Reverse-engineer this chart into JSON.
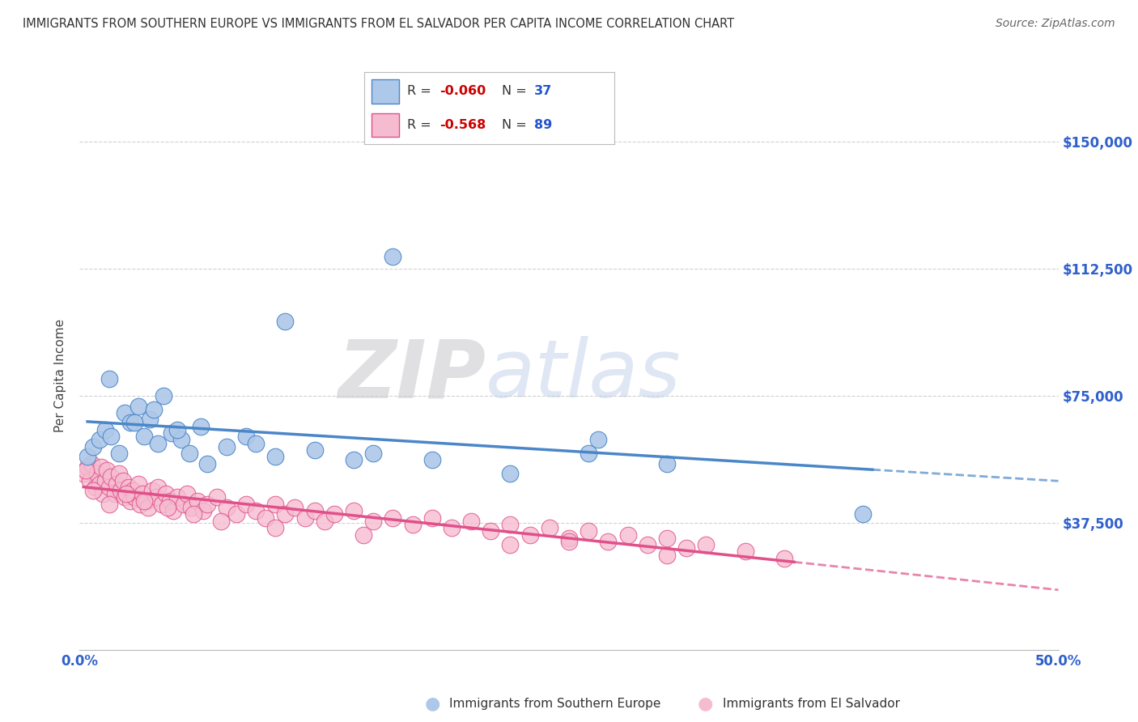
{
  "title": "IMMIGRANTS FROM SOUTHERN EUROPE VS IMMIGRANTS FROM EL SALVADOR PER CAPITA INCOME CORRELATION CHART",
  "source": "Source: ZipAtlas.com",
  "ylabel": "Per Capita Income",
  "yticks": [
    0,
    37500,
    75000,
    112500,
    150000
  ],
  "ytick_labels": [
    "",
    "$37,500",
    "$75,000",
    "$112,500",
    "$150,000"
  ],
  "xlim": [
    0.0,
    50.0
  ],
  "ylim": [
    0,
    162000
  ],
  "series1_label": "Immigrants from Southern Europe",
  "series1_R": "-0.060",
  "series1_N": "37",
  "series1_color": "#adc8e8",
  "series1_edge_color": "#4a86c8",
  "series2_label": "Immigrants from El Salvador",
  "series2_R": "-0.568",
  "series2_N": "89",
  "series2_color": "#f5bcd0",
  "series2_edge_color": "#e0508a",
  "watermark_zip": "ZIP",
  "watermark_atlas": "atlas",
  "background_color": "#ffffff",
  "grid_color": "#cccccc",
  "title_color": "#333333",
  "axis_label_color": "#3060cc",
  "legend_R_color": "#cc0000",
  "legend_N_color": "#2255cc",
  "blue_points_x": [
    0.4,
    0.7,
    1.0,
    1.3,
    1.6,
    2.0,
    2.3,
    2.6,
    3.0,
    3.3,
    3.6,
    4.0,
    4.3,
    4.7,
    5.2,
    5.6,
    6.2,
    7.5,
    8.5,
    10.0,
    12.0,
    1.5,
    2.8,
    3.8,
    5.0,
    6.5,
    9.0,
    16.0,
    15.0,
    18.0,
    22.0,
    26.0,
    30.0,
    40.0,
    26.5,
    10.5,
    14.0
  ],
  "blue_points_y": [
    57000,
    60000,
    62000,
    65000,
    63000,
    58000,
    70000,
    67000,
    72000,
    63000,
    68000,
    61000,
    75000,
    64000,
    62000,
    58000,
    66000,
    60000,
    63000,
    57000,
    59000,
    80000,
    67000,
    71000,
    65000,
    55000,
    61000,
    116000,
    58000,
    56000,
    52000,
    58000,
    55000,
    40000,
    62000,
    97000,
    56000
  ],
  "pink_points_x": [
    0.2,
    0.4,
    0.5,
    0.6,
    0.8,
    0.9,
    1.0,
    1.1,
    1.2,
    1.3,
    1.4,
    1.5,
    1.6,
    1.8,
    1.9,
    2.0,
    2.1,
    2.2,
    2.3,
    2.5,
    2.6,
    2.7,
    2.8,
    3.0,
    3.1,
    3.2,
    3.4,
    3.5,
    3.7,
    3.9,
    4.0,
    4.2,
    4.4,
    4.6,
    4.8,
    5.0,
    5.3,
    5.5,
    5.7,
    6.0,
    6.3,
    6.5,
    7.0,
    7.5,
    8.0,
    8.5,
    9.0,
    9.5,
    10.0,
    10.5,
    11.0,
    11.5,
    12.0,
    12.5,
    13.0,
    14.0,
    15.0,
    16.0,
    17.0,
    18.0,
    19.0,
    20.0,
    21.0,
    22.0,
    23.0,
    24.0,
    25.0,
    26.0,
    27.0,
    28.0,
    29.0,
    30.0,
    31.0,
    32.0,
    34.0,
    36.0,
    0.3,
    0.7,
    1.5,
    2.4,
    3.3,
    4.5,
    5.8,
    7.2,
    10.0,
    14.5,
    22.0,
    30.0,
    25.0
  ],
  "pink_points_y": [
    52000,
    54000,
    50000,
    55000,
    48000,
    52000,
    49000,
    54000,
    46000,
    50000,
    53000,
    48000,
    51000,
    46000,
    49000,
    52000,
    47000,
    50000,
    45000,
    48000,
    44000,
    47000,
    45000,
    49000,
    43000,
    46000,
    44000,
    42000,
    47000,
    45000,
    48000,
    43000,
    46000,
    44000,
    41000,
    45000,
    43000,
    46000,
    42000,
    44000,
    41000,
    43000,
    45000,
    42000,
    40000,
    43000,
    41000,
    39000,
    43000,
    40000,
    42000,
    39000,
    41000,
    38000,
    40000,
    41000,
    38000,
    39000,
    37000,
    39000,
    36000,
    38000,
    35000,
    37000,
    34000,
    36000,
    33000,
    35000,
    32000,
    34000,
    31000,
    33000,
    30000,
    31000,
    29000,
    27000,
    53000,
    47000,
    43000,
    46000,
    44000,
    42000,
    40000,
    38000,
    36000,
    34000,
    31000,
    28000,
    32000
  ]
}
